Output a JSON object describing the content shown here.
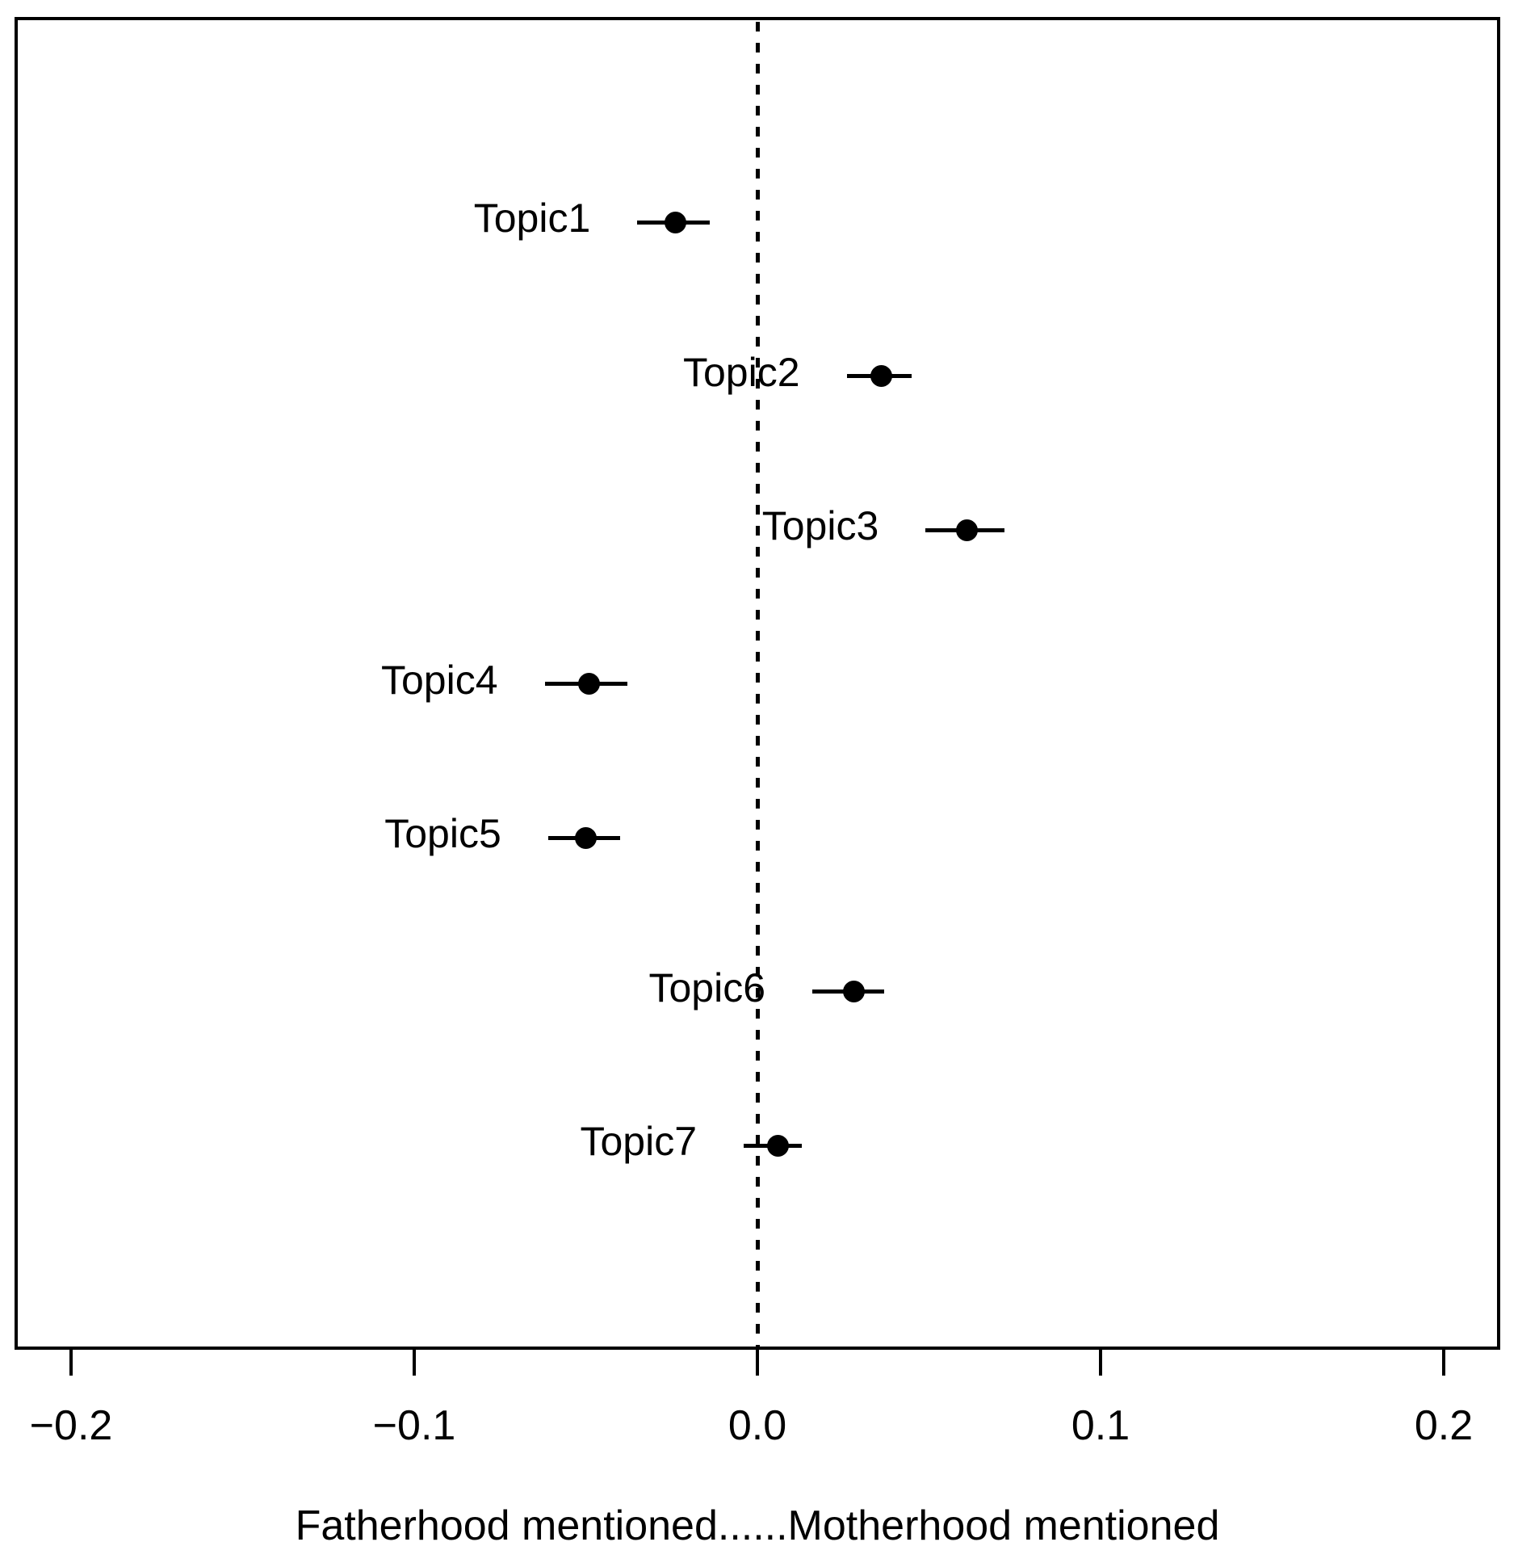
{
  "chart_data": {
    "type": "scatter",
    "subtype": "dot-and-whisker effect plot",
    "title": "",
    "xlabel": "Fatherhood mentioned......Motherhood mentioned",
    "ylabel": "",
    "xlim": [
      -0.216,
      0.216
    ],
    "x_ticks": [
      -0.2,
      -0.1,
      0.0,
      0.1,
      0.2
    ],
    "x_tick_labels": [
      "−0.2",
      "−0.1",
      "0.0",
      "0.1",
      "0.2"
    ],
    "reference_line_x": 0.0,
    "reference_line_style": "dashed",
    "grid": false,
    "legend": "none",
    "points": [
      {
        "label": "Topic1",
        "estimate": -0.024,
        "ci_low": -0.035,
        "ci_high": -0.014
      },
      {
        "label": "Topic2",
        "estimate": 0.036,
        "ci_low": 0.026,
        "ci_high": 0.045
      },
      {
        "label": "Topic3",
        "estimate": 0.061,
        "ci_low": 0.049,
        "ci_high": 0.072
      },
      {
        "label": "Topic4",
        "estimate": -0.049,
        "ci_low": -0.062,
        "ci_high": -0.038
      },
      {
        "label": "Topic5",
        "estimate": -0.05,
        "ci_low": -0.061,
        "ci_high": -0.04
      },
      {
        "label": "Topic6",
        "estimate": 0.028,
        "ci_low": 0.016,
        "ci_high": 0.037
      },
      {
        "label": "Topic7",
        "estimate": 0.006,
        "ci_low": -0.004,
        "ci_high": 0.013
      }
    ],
    "colors": {
      "marker": "#000000",
      "axis": "#000000",
      "background": "#ffffff"
    }
  }
}
